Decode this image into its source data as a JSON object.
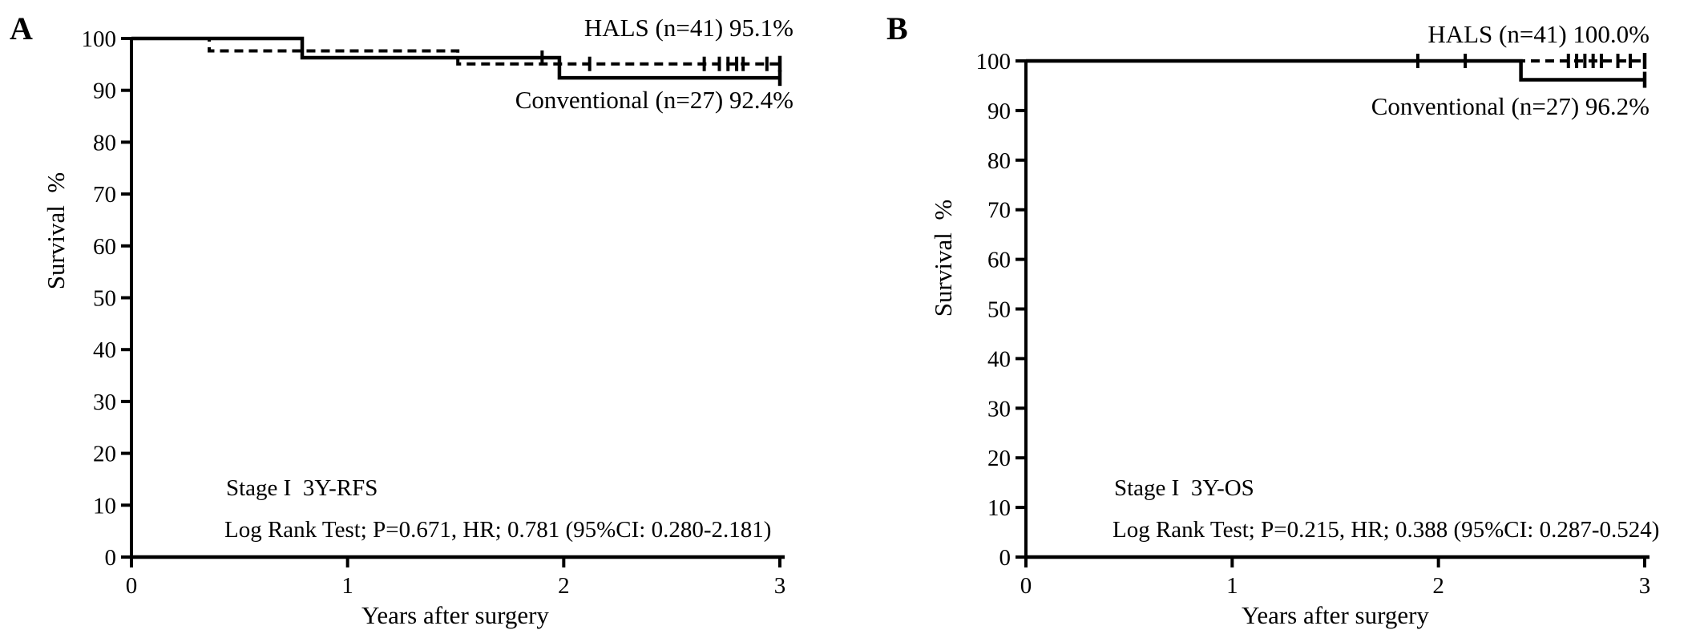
{
  "figure": {
    "background": "#ffffff",
    "line_color": "#000000"
  },
  "panels": [
    {
      "panel_label": "A",
      "legend": {
        "top": "HALS (n=41) 95.1%",
        "bottom": "Conventional (n=27) 92.4%"
      },
      "stage_label": "Stage I  3Y-RFS",
      "stats_label": "Log Rank Test; P=0.671, HR; 0.781 (95%CI: 0.280-2.181)",
      "xlabel": "Years after surgery",
      "ylabel": "Survival  %"
    },
    {
      "panel_label": "B",
      "legend": {
        "top": "HALS (n=41) 100.0%",
        "bottom": "Conventional (n=27) 96.2%"
      },
      "stage_label": "Stage I  3Y-OS",
      "stats_label": "Log Rank Test; P=0.215, HR; 0.388 (95%CI: 0.287-0.524)",
      "xlabel": "Years after surgery",
      "ylabel": "Survival  %"
    }
  ],
  "chart_data": [
    {
      "type": "line",
      "subtype": "kaplan-meier-step",
      "panel": "A",
      "endpoint": "3-year recurrence-free survival",
      "annotation": "Stage I  3Y-RFS",
      "stats": "Log Rank Test; P=0.671, HR; 0.781 (95%CI: 0.280-2.181)",
      "xlabel": "Years after surgery",
      "ylabel": "Survival %",
      "xlim": [
        0,
        3
      ],
      "ylim": [
        0,
        100
      ],
      "x_ticks": [
        0,
        1,
        2,
        3
      ],
      "y_ticks": [
        0,
        10,
        20,
        30,
        40,
        50,
        60,
        70,
        80,
        90,
        100
      ],
      "grid": false,
      "legend_position": "top-right-inside",
      "series": [
        {
          "name": "HALS (n=41) 95.1%",
          "group": "HALS",
          "n": 41,
          "final_survival_pct": 95.1,
          "line": "dashed",
          "points": [
            [
              0,
              100
            ],
            [
              0.36,
              100
            ],
            [
              0.36,
              97.6
            ],
            [
              1.51,
              97.6
            ],
            [
              1.51,
              95.1
            ],
            [
              3,
              95.1
            ]
          ],
          "censors": [
            [
              2.12,
              95.1
            ],
            [
              2.65,
              95.1
            ],
            [
              2.72,
              95.1
            ],
            [
              2.76,
              95.1
            ],
            [
              2.8,
              95.1
            ],
            [
              2.83,
              95.1
            ],
            [
              2.94,
              95.1
            ]
          ],
          "terminal_tick": [
            3,
            95.1
          ]
        },
        {
          "name": "Conventional (n=27) 92.4%",
          "group": "Conventional",
          "n": 27,
          "final_survival_pct": 92.4,
          "line": "solid",
          "points": [
            [
              0,
              100
            ],
            [
              0.79,
              100
            ],
            [
              0.79,
              96.3
            ],
            [
              1.98,
              96.3
            ],
            [
              1.98,
              92.4
            ],
            [
              3,
              92.4
            ]
          ],
          "censors": [
            [
              1.9,
              96.3
            ]
          ],
          "terminal_tick": [
            3,
            92.4
          ]
        }
      ]
    },
    {
      "type": "line",
      "subtype": "kaplan-meier-step",
      "panel": "B",
      "endpoint": "3-year overall survival",
      "annotation": "Stage I  3Y-OS",
      "stats": "Log Rank Test; P=0.215, HR; 0.388 (95%CI: 0.287-0.524)",
      "xlabel": "Years after surgery",
      "ylabel": "Survival %",
      "xlim": [
        0,
        3
      ],
      "ylim": [
        0,
        100
      ],
      "x_ticks": [
        0,
        1,
        2,
        3
      ],
      "y_ticks": [
        0,
        10,
        20,
        30,
        40,
        50,
        60,
        70,
        80,
        90,
        100
      ],
      "grid": false,
      "legend_position": "top-right-inside",
      "series": [
        {
          "name": "HALS (n=41) 100.0%",
          "group": "HALS",
          "n": 41,
          "final_survival_pct": 100.0,
          "line": "dashed",
          "points": [
            [
              0,
              100
            ],
            [
              3,
              100
            ]
          ],
          "censors": [
            [
              1.9,
              100
            ],
            [
              2.13,
              100
            ],
            [
              2.63,
              100
            ],
            [
              2.67,
              100
            ],
            [
              2.71,
              100
            ],
            [
              2.75,
              100
            ],
            [
              2.79,
              100
            ],
            [
              2.87,
              100
            ],
            [
              2.93,
              100
            ]
          ],
          "terminal_tick": [
            3,
            100
          ]
        },
        {
          "name": "Conventional (n=27) 96.2%",
          "group": "Conventional",
          "n": 27,
          "final_survival_pct": 96.2,
          "line": "solid",
          "points": [
            [
              0,
              100
            ],
            [
              2.4,
              100
            ],
            [
              2.4,
              96.2
            ],
            [
              3,
              96.2
            ]
          ],
          "censors": [],
          "terminal_tick": [
            3,
            96.2
          ]
        }
      ]
    }
  ]
}
